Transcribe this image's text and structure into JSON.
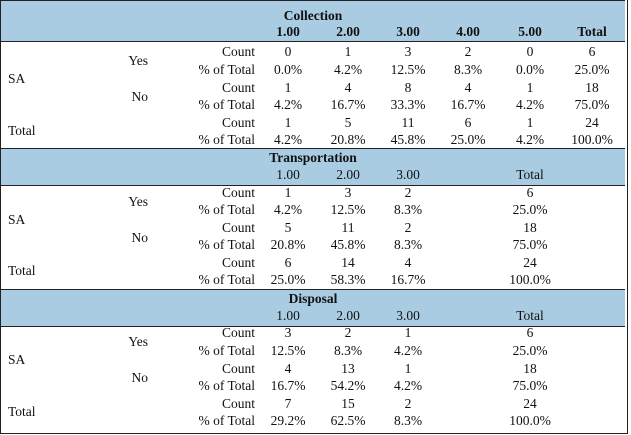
{
  "common": {
    "count_label": "Count",
    "pct_label": "% of Total",
    "sa_label": "SA",
    "yes_label": "Yes",
    "no_label": "No",
    "total_label": "Total",
    "band_fill": "#a9cce3"
  },
  "collection": {
    "title": "Collection",
    "headers": [
      "1.00",
      "2.00",
      "3.00",
      "4.00",
      "5.00",
      "Total"
    ],
    "yes_count": [
      "0",
      "1",
      "3",
      "2",
      "0",
      "6"
    ],
    "yes_pct": [
      "0.0%",
      "4.2%",
      "12.5%",
      "8.3%",
      "0.0%",
      "25.0%"
    ],
    "no_count": [
      "1",
      "4",
      "8",
      "4",
      "1",
      "18"
    ],
    "no_pct": [
      "4.2%",
      "16.7%",
      "33.3%",
      "16.7%",
      "4.2%",
      "75.0%"
    ],
    "total_count": [
      "1",
      "5",
      "11",
      "6",
      "1",
      "24"
    ],
    "total_pct": [
      "4.2%",
      "20.8%",
      "45.8%",
      "25.0%",
      "4.2%",
      "100.0%"
    ]
  },
  "transportation": {
    "title": "Transportation",
    "headers": [
      "1.00",
      "2.00",
      "3.00",
      "Total"
    ],
    "yes_count": [
      "1",
      "3",
      "2",
      "6"
    ],
    "yes_pct": [
      "4.2%",
      "12.5%",
      "8.3%",
      "25.0%"
    ],
    "no_count": [
      "5",
      "11",
      "2",
      "18"
    ],
    "no_pct": [
      "20.8%",
      "45.8%",
      "8.3%",
      "75.0%"
    ],
    "total_count": [
      "6",
      "14",
      "4",
      "24"
    ],
    "total_pct": [
      "25.0%",
      "58.3%",
      "16.7%",
      "100.0%"
    ]
  },
  "disposal": {
    "title": "Disposal",
    "headers": [
      "1.00",
      "2.00",
      "3.00",
      "Total"
    ],
    "yes_count": [
      "3",
      "2",
      "1",
      "6"
    ],
    "yes_pct": [
      "12.5%",
      "8.3%",
      "4.2%",
      "25.0%"
    ],
    "no_count": [
      "4",
      "13",
      "1",
      "18"
    ],
    "no_pct": [
      "16.7%",
      "54.2%",
      "4.2%",
      "75.0%"
    ],
    "total_count": [
      "7",
      "15",
      "2",
      "24"
    ],
    "total_pct": [
      "29.2%",
      "62.5%",
      "8.3%",
      "100.0%"
    ]
  }
}
